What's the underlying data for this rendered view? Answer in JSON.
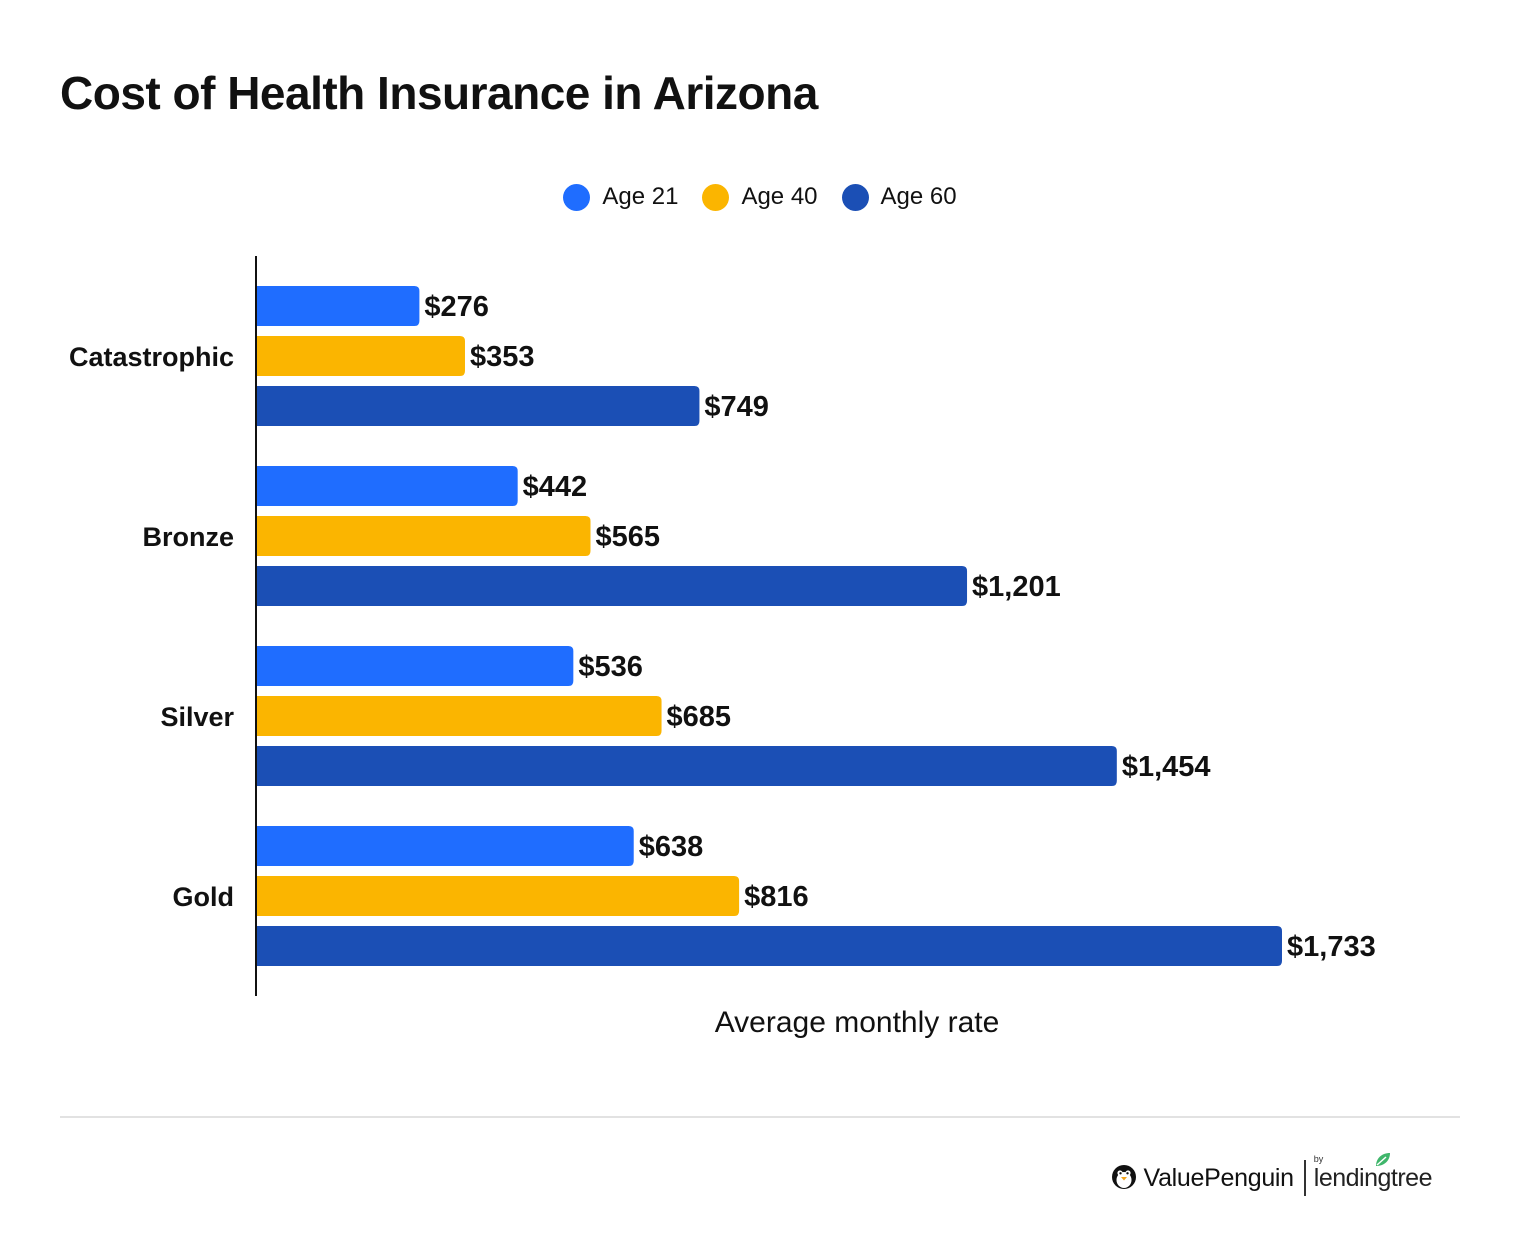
{
  "chart_data": {
    "type": "bar",
    "orientation": "horizontal",
    "title": "Cost of Health Insurance in Arizona",
    "xlabel": "Average monthly rate",
    "ylabel": "",
    "categories": [
      "Catastrophic",
      "Bronze",
      "Silver",
      "Gold"
    ],
    "series": [
      {
        "name": "Age 21",
        "color": "#1f6dff",
        "values": [
          276,
          442,
          536,
          638
        ],
        "labels": [
          "$276",
          "$442",
          "$536",
          "$638"
        ]
      },
      {
        "name": "Age 40",
        "color": "#fbb500",
        "values": [
          353,
          565,
          685,
          816
        ],
        "labels": [
          "$353",
          "$565",
          "$685",
          "$816"
        ]
      },
      {
        "name": "Age 60",
        "color": "#1b4fb5",
        "values": [
          749,
          1201,
          1454,
          1733
        ],
        "labels": [
          "$749",
          "$1,201",
          "$1,454",
          "$1,733"
        ]
      }
    ],
    "xlim": [
      0,
      1733
    ],
    "grid": false,
    "legend_position": "top"
  },
  "footer": {
    "brand": "ValuePenguin",
    "partner_prefix": "by",
    "partner": "lendingtree",
    "icons": [
      "penguin-icon",
      "leaf-icon"
    ]
  }
}
